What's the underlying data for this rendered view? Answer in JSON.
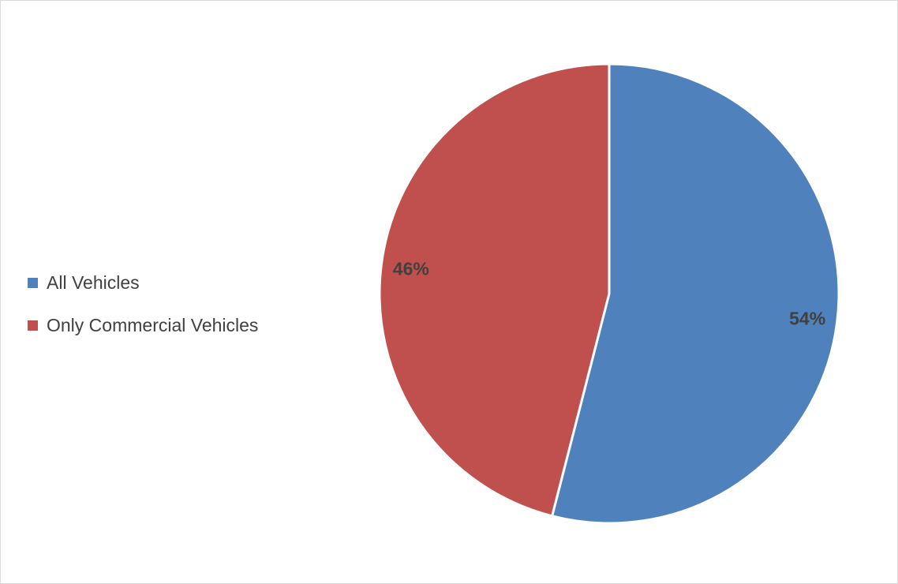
{
  "chart_data": {
    "type": "pie",
    "title": "",
    "categories": [
      "All Vehicles",
      "Only Commercial Vehicles"
    ],
    "values": [
      54,
      46
    ],
    "data_labels": [
      "54%",
      "46%"
    ],
    "colors": [
      "#4f81bd",
      "#c0504d"
    ],
    "legend_placement": "left",
    "start_angle": "12 o'clock",
    "direction": "clockwise"
  }
}
